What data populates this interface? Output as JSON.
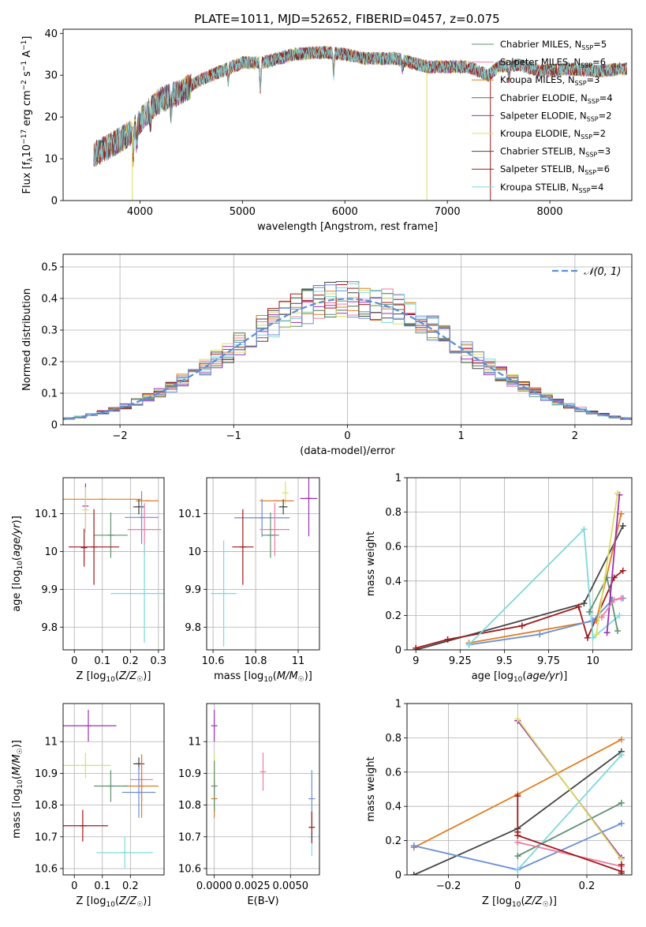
{
  "figure": {
    "title": "PLATE=1011, MJD=52652, FIBERID=0457, z=0.075",
    "colors": {
      "Chabrier MILES": "#5e9070",
      "Salpeter MILES": "#f07aa0",
      "Kroupa MILES": "#e07d20",
      "Chabrier ELODIE": "#4f7055",
      "Salpeter ELODIE": "#9b30b8",
      "Kroupa ELODIE": "#d9e060",
      "Chabrier STELIB": "#444444",
      "Salpeter STELIB": "#a01818",
      "Kroupa STELIB": "#7fd8dd",
      "extra_blue": "#6a8ed8",
      "normal": "#5b8fd6"
    }
  },
  "chart_data": [
    {
      "id": "spectrum",
      "type": "line",
      "title": "PLATE=1011, MJD=52652, FIBERID=0457, z=0.075",
      "xlabel": "wavelength [Angstrom, rest frame]",
      "ylabel": "Flux [f_λ 10^-17 erg cm^-2 s^-1 A^-1]",
      "xlim": [
        3250,
        8800
      ],
      "ylim": [
        0,
        41
      ],
      "xticks": [
        4000,
        5000,
        6000,
        7000,
        8000
      ],
      "yticks": [
        0,
        10,
        20,
        30,
        40
      ],
      "grid": false,
      "legend_position": "top-right",
      "continuum": [
        [
          3550,
          11
        ],
        [
          3700,
          13
        ],
        [
          3900,
          16
        ],
        [
          4000,
          19
        ],
        [
          4100,
          22
        ],
        [
          4200,
          24
        ],
        [
          4400,
          26
        ],
        [
          4600,
          29
        ],
        [
          4800,
          31
        ],
        [
          5000,
          33
        ],
        [
          5200,
          33
        ],
        [
          5500,
          35
        ],
        [
          5800,
          35.5
        ],
        [
          6000,
          35
        ],
        [
          6200,
          34
        ],
        [
          6500,
          34
        ],
        [
          6800,
          32
        ],
        [
          7000,
          32
        ],
        [
          7200,
          32
        ],
        [
          7400,
          30
        ],
        [
          7500,
          32
        ],
        [
          7700,
          32.5
        ],
        [
          7900,
          31
        ],
        [
          8200,
          31.5
        ],
        [
          8500,
          31
        ],
        [
          8700,
          31.5
        ]
      ],
      "absorption_features": [
        [
          3934,
          -6
        ],
        [
          3969,
          -5
        ],
        [
          4102,
          -3
        ],
        [
          4304,
          -4
        ],
        [
          4861,
          -3
        ],
        [
          5175,
          -6
        ],
        [
          5890,
          -5
        ],
        [
          6563,
          -2
        ],
        [
          7600,
          -3
        ]
      ],
      "spikes": [
        {
          "series": "Kroupa ELODIE",
          "x": 3925,
          "y": 0
        },
        {
          "series": "Kroupa ELODIE",
          "x": 6800,
          "y": 0
        },
        {
          "series": "Salpeter STELIB",
          "x": 7420,
          "y": 0
        }
      ],
      "legend": [
        {
          "name": "Chabrier MILES, N_SSP=5",
          "label": "Chabrier MILES, N",
          "nssp": "=5",
          "color": "#5e9070"
        },
        {
          "name": "Salpeter MILES, N_SSP=6",
          "label": "Salpeter MILES, N",
          "nssp": "=6",
          "color": "#f07aa0"
        },
        {
          "name": "Kroupa MILES, N_SSP=3",
          "label": "Kroupa MILES, N",
          "nssp": "=3",
          "color": "#e07d20"
        },
        {
          "name": "Chabrier ELODIE, N_SSP=4",
          "label": "Chabrier ELODIE, N",
          "nssp": "=4",
          "color": "#4f7055"
        },
        {
          "name": "Salpeter ELODIE, N_SSP=2",
          "label": "Salpeter ELODIE, N",
          "nssp": "=2",
          "color": "#9b30b8"
        },
        {
          "name": "Kroupa ELODIE, N_SSP=2",
          "label": "Kroupa ELODIE, N",
          "nssp": "=2",
          "color": "#d9e060"
        },
        {
          "name": "Chabrier STELIB, N_SSP=3",
          "label": "Chabrier STELIB, N",
          "nssp": "=3",
          "color": "#444444"
        },
        {
          "name": "Salpeter STELIB, N_SSP=6",
          "label": "Salpeter STELIB, N",
          "nssp": "=6",
          "color": "#a01818"
        },
        {
          "name": "Kroupa STELIB, N_SSP=4",
          "label": "Kroupa STELIB, N",
          "nssp": "=4",
          "color": "#7fd8dd"
        }
      ]
    },
    {
      "id": "residuals",
      "type": "histogram",
      "xlabel": "(data-model)/error",
      "ylabel": "Normed distribution",
      "xlim": [
        -2.5,
        2.5
      ],
      "ylim": [
        0,
        0.54
      ],
      "xticks": [
        -2,
        -1,
        0,
        1,
        2
      ],
      "yticks": [
        0.0,
        0.1,
        0.2,
        0.3,
        0.4,
        0.5
      ],
      "grid": true,
      "legend": "𝒩(0, 1)",
      "legend_position": "top-right",
      "bin_width": 0.1,
      "series": [
        {
          "color": "#5e9070",
          "seed": 1
        },
        {
          "color": "#f07aa0",
          "seed": 2
        },
        {
          "color": "#e07d20",
          "seed": 3
        },
        {
          "color": "#4f7055",
          "seed": 4
        },
        {
          "color": "#9b30b8",
          "seed": 5
        },
        {
          "color": "#d9e060",
          "seed": 6
        },
        {
          "color": "#444444",
          "seed": 7
        },
        {
          "color": "#a01818",
          "seed": 8
        },
        {
          "color": "#7fd8dd",
          "seed": 9
        },
        {
          "color": "#6a8ed8",
          "seed": 10
        }
      ]
    },
    {
      "id": "age_vs_Z",
      "type": "errorbar",
      "xlabel": "Z [log10(Z/Z☉)]",
      "ylabel": "age  [log10(age/yr)]",
      "xlim": [
        -0.04,
        0.32
      ],
      "ylim": [
        9.74,
        10.195
      ],
      "xticks": [
        0.0,
        0.1,
        0.2,
        0.3
      ],
      "yticks": [
        9.8,
        9.9,
        10.0,
        10.1
      ],
      "grid": true,
      "points": [
        {
          "x": 0.1,
          "y": 10.138,
          "xerr": 0.14,
          "yerr": 0.0,
          "color": "#e07d20"
        },
        {
          "x": 0.04,
          "y": 10.12,
          "xerr": 0.0,
          "yerr": 0.06,
          "color": "#9b30b8"
        },
        {
          "x": 0.04,
          "y": 10.11,
          "xerr": 0.0,
          "yerr": 0.06,
          "color": "#d9e060"
        },
        {
          "x": 0.26,
          "y": 10.134,
          "xerr": 0.04,
          "yerr": 0.0,
          "color": "#e07d20"
        },
        {
          "x": 0.23,
          "y": 10.118,
          "xerr": 0.02,
          "yerr": 0.02,
          "color": "#444444"
        },
        {
          "x": 0.24,
          "y": 10.09,
          "xerr": 0.06,
          "yerr": 0.07,
          "color": "#6a8ed8"
        },
        {
          "x": 0.25,
          "y": 10.058,
          "xerr": 0.06,
          "yerr": 0.07,
          "color": "#f07aa0"
        },
        {
          "x": 0.13,
          "y": 10.043,
          "xerr": 0.06,
          "yerr": 0.06,
          "color": "#5e9070"
        },
        {
          "x": 0.07,
          "y": 10.012,
          "xerr": 0.09,
          "yerr": 0.1,
          "color": "#a01818"
        },
        {
          "x": 0.035,
          "y": 10.01,
          "xerr": 0.0,
          "yerr": 0.05,
          "color": "#a01818"
        },
        {
          "x": 0.25,
          "y": 9.889,
          "xerr": 0.12,
          "yerr": 0.13,
          "color": "#7fd8dd"
        }
      ]
    },
    {
      "id": "age_vs_mass",
      "type": "errorbar",
      "xlabel": "mass [log10(M/M☉)]",
      "ylabel": "",
      "xlim": [
        10.57,
        11.1
      ],
      "ylim": [
        9.74,
        10.195
      ],
      "xticks": [
        10.6,
        10.8,
        11.0
      ],
      "yticks": [
        9.8,
        9.9,
        10.0,
        10.1
      ],
      "grid": true,
      "points": [
        {
          "x": 10.94,
          "y": 10.155,
          "xerr": 0.0,
          "yerr": 0.03,
          "color": "#d9e060"
        },
        {
          "x": 11.05,
          "y": 10.14,
          "xerr": 0.04,
          "yerr": 0.1,
          "color": "#9b30b8"
        },
        {
          "x": 10.9,
          "y": 10.134,
          "xerr": 0.08,
          "yerr": 0.0,
          "color": "#e07d20"
        },
        {
          "x": 10.93,
          "y": 10.118,
          "xerr": 0.02,
          "yerr": 0.02,
          "color": "#444444"
        },
        {
          "x": 10.83,
          "y": 10.089,
          "xerr": 0.13,
          "yerr": 0.05,
          "color": "#6a8ed8"
        },
        {
          "x": 10.89,
          "y": 10.058,
          "xerr": 0.07,
          "yerr": 0.07,
          "color": "#f07aa0"
        },
        {
          "x": 10.87,
          "y": 10.043,
          "xerr": 0.04,
          "yerr": 0.06,
          "color": "#5e9070"
        },
        {
          "x": 10.74,
          "y": 10.012,
          "xerr": 0.05,
          "yerr": 0.1,
          "color": "#a01818"
        },
        {
          "x": 10.65,
          "y": 9.889,
          "xerr": 0.06,
          "yerr": 0.14,
          "color": "#7fd8dd"
        }
      ]
    },
    {
      "id": "weight_vs_age",
      "type": "line",
      "xlabel": "age  [log10(age/yr)]",
      "ylabel": "mass weight",
      "xlim": [
        8.95,
        10.22
      ],
      "ylim": [
        0,
        1.0
      ],
      "xticks": [
        9.0,
        9.25,
        9.5,
        9.75,
        10.0
      ],
      "yticks": [
        0.0,
        0.2,
        0.4,
        0.6,
        0.8,
        1.0
      ],
      "grid": true,
      "series": [
        {
          "color": "#444444",
          "points": [
            [
              9.0,
              0.0
            ],
            [
              9.95,
              0.27
            ],
            [
              10.17,
              0.72
            ]
          ]
        },
        {
          "color": "#a01818",
          "points": [
            [
              9.0,
              0.01
            ],
            [
              9.18,
              0.06
            ],
            [
              9.6,
              0.14
            ],
            [
              9.92,
              0.25
            ],
            [
              9.97,
              0.07
            ],
            [
              10.12,
              0.42
            ],
            [
              10.17,
              0.46
            ]
          ]
        },
        {
          "color": "#e07d20",
          "points": [
            [
              9.3,
              0.04
            ],
            [
              10.02,
              0.17
            ],
            [
              10.16,
              0.79
            ]
          ]
        },
        {
          "color": "#6a8ed8",
          "points": [
            [
              9.3,
              0.03
            ],
            [
              9.7,
              0.09
            ],
            [
              10.0,
              0.17
            ],
            [
              10.11,
              0.29
            ],
            [
              10.17,
              0.3
            ]
          ]
        },
        {
          "color": "#7fd8dd",
          "points": [
            [
              9.3,
              0.03
            ],
            [
              9.95,
              0.7
            ],
            [
              10.0,
              0.07
            ],
            [
              10.15,
              0.2
            ]
          ]
        },
        {
          "color": "#5e9070",
          "points": [
            [
              9.98,
              0.22
            ],
            [
              10.08,
              0.42
            ],
            [
              10.14,
              0.11
            ]
          ]
        },
        {
          "color": "#9b30b8",
          "points": [
            [
              10.08,
              0.1
            ],
            [
              10.15,
              0.9
            ]
          ]
        },
        {
          "color": "#d9e060",
          "points": [
            [
              10.02,
              0.09
            ],
            [
              10.14,
              0.91
            ]
          ]
        },
        {
          "color": "#f07aa0",
          "points": [
            [
              10.05,
              0.19
            ],
            [
              10.12,
              0.29
            ],
            [
              10.16,
              0.3
            ]
          ]
        }
      ]
    },
    {
      "id": "mass_vs_Z",
      "type": "errorbar",
      "xlabel": "Z [log10(Z/Z☉)]",
      "ylabel": "mass [log10(M/M☉)]",
      "xlim": [
        -0.04,
        0.32
      ],
      "ylim": [
        10.58,
        11.12
      ],
      "xticks": [
        0.0,
        0.1,
        0.2
      ],
      "yticks": [
        10.6,
        10.7,
        10.8,
        10.9,
        11.0
      ],
      "grid": true,
      "points": [
        {
          "x": 0.05,
          "y": 11.05,
          "xerr": 0.1,
          "yerr": 0.05,
          "color": "#9b30b8"
        },
        {
          "x": 0.04,
          "y": 10.925,
          "xerr": 0.09,
          "yerr": 0.04,
          "color": "#d9e060"
        },
        {
          "x": 0.23,
          "y": 10.93,
          "xerr": 0.02,
          "yerr": 0.02,
          "color": "#444444"
        },
        {
          "x": 0.24,
          "y": 10.88,
          "xerr": 0.04,
          "yerr": 0.07,
          "color": "#f07aa0"
        },
        {
          "x": 0.24,
          "y": 10.86,
          "xerr": 0.06,
          "yerr": 0.1,
          "color": "#e07d20"
        },
        {
          "x": 0.13,
          "y": 10.86,
          "xerr": 0.06,
          "yerr": 0.05,
          "color": "#5e9070"
        },
        {
          "x": 0.23,
          "y": 10.84,
          "xerr": 0.06,
          "yerr": 0.08,
          "color": "#6a8ed8"
        },
        {
          "x": 0.03,
          "y": 10.735,
          "xerr": 0.09,
          "yerr": 0.05,
          "color": "#a01818"
        },
        {
          "x": 0.18,
          "y": 10.65,
          "xerr": 0.1,
          "yerr": 0.05,
          "color": "#7fd8dd"
        }
      ]
    },
    {
      "id": "mass_vs_EBV",
      "type": "errorbar",
      "xlabel": "E(B-V)",
      "ylabel": "",
      "xlim": [
        -0.0005,
        0.0069
      ],
      "ylim": [
        10.58,
        11.12
      ],
      "xticks": [
        0.0,
        0.0025,
        0.005
      ],
      "xticklabels": [
        "0.0000",
        "0.0025",
        "0.0050"
      ],
      "yticks": [
        10.6,
        10.7,
        10.8,
        10.9,
        11.0
      ],
      "grid": true,
      "points": [
        {
          "x": 0.0,
          "y": 11.05,
          "xerr": 0.0,
          "yerr": 0.05,
          "color": "#9b30b8"
        },
        {
          "x": 0.0,
          "y": 10.9,
          "xerr": 0.0,
          "yerr": 0.06,
          "color": "#d9e060"
        },
        {
          "x": 0.0,
          "y": 10.82,
          "xerr": 0.0,
          "yerr": 0.06,
          "color": "#e07d20"
        },
        {
          "x": 0.0,
          "y": 10.86,
          "xerr": 0.0,
          "yerr": 0.08,
          "color": "#5e9070"
        },
        {
          "x": 0.0032,
          "y": 10.905,
          "xerr": 0.0,
          "yerr": 0.06,
          "color": "#f07aa0"
        },
        {
          "x": 0.0064,
          "y": 10.82,
          "xerr": 0.0,
          "yerr": 0.09,
          "color": "#6a8ed8"
        },
        {
          "x": 0.0064,
          "y": 10.7,
          "xerr": 0.0,
          "yerr": 0.06,
          "color": "#7fd8dd"
        },
        {
          "x": 0.0064,
          "y": 10.73,
          "xerr": 0.0,
          "yerr": 0.05,
          "color": "#a01818"
        }
      ]
    },
    {
      "id": "weight_vs_Z",
      "type": "line",
      "xlabel": "Z [log10(Z/Z☉)]",
      "ylabel": "mass weight",
      "xlim": [
        -0.32,
        0.33
      ],
      "ylim": [
        0,
        1.0
      ],
      "xticks": [
        -0.2,
        0.0,
        0.2
      ],
      "yticks": [
        0.0,
        0.2,
        0.4,
        0.6,
        0.8,
        1.0
      ],
      "grid": true,
      "series": [
        {
          "color": "#e07d20",
          "points": [
            [
              -0.3,
              0.16
            ],
            [
              0.0,
              0.47
            ],
            [
              0.3,
              0.79
            ]
          ]
        },
        {
          "color": "#444444",
          "points": [
            [
              -0.3,
              0.0
            ],
            [
              0.0,
              0.27
            ],
            [
              0.3,
              0.72
            ]
          ]
        },
        {
          "color": "#6a8ed8",
          "points": [
            [
              -0.3,
              0.17
            ],
            [
              0.0,
              0.03
            ],
            [
              0.3,
              0.3
            ]
          ]
        },
        {
          "color": "#5e9070",
          "points": [
            [
              0.0,
              0.11
            ],
            [
              0.3,
              0.42
            ]
          ]
        },
        {
          "color": "#7fd8dd",
          "points": [
            [
              0.0,
              0.03
            ],
            [
              0.3,
              0.7
            ]
          ]
        },
        {
          "color": "#9b30b8",
          "points": [
            [
              0.0,
              0.9
            ],
            [
              0.3,
              0.1
            ]
          ]
        },
        {
          "color": "#d9e060",
          "points": [
            [
              0.0,
              0.91
            ],
            [
              0.3,
              0.09
            ]
          ]
        },
        {
          "color": "#f07aa0",
          "points": [
            [
              0.0,
              0.19
            ],
            [
              0.3,
              0.05
            ]
          ]
        },
        {
          "color": "#a01818",
          "points": [
            [
              0.0,
              0.46
            ],
            [
              0.0,
              0.25
            ],
            [
              0.0,
              0.23
            ],
            [
              0.3,
              0.02
            ],
            [
              0.3,
              0.06
            ],
            [
              0.3,
              0.01
            ]
          ]
        }
      ]
    }
  ]
}
